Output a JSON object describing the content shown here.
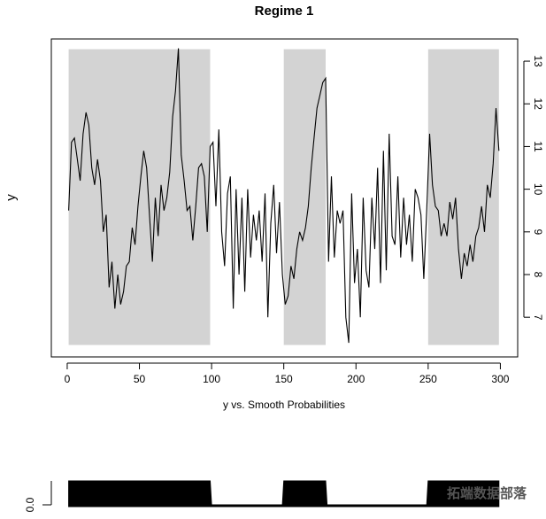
{
  "chart_data": [
    {
      "type": "line",
      "title": "Regime 1",
      "x_label": "y vs. Smooth Probabilities",
      "y_label": "y",
      "color": "#000000",
      "shade_color": "#d3d3d3",
      "x": [
        1,
        3,
        5,
        7,
        9,
        11,
        13,
        15,
        17,
        19,
        21,
        23,
        25,
        27,
        29,
        31,
        33,
        35,
        37,
        39,
        41,
        43,
        45,
        47,
        49,
        51,
        53,
        55,
        57,
        59,
        61,
        63,
        65,
        67,
        69,
        71,
        73,
        75,
        77,
        79,
        81,
        83,
        85,
        87,
        89,
        91,
        93,
        95,
        97,
        99,
        101,
        103,
        105,
        107,
        109,
        111,
        113,
        115,
        117,
        119,
        121,
        123,
        125,
        127,
        129,
        131,
        133,
        135,
        137,
        139,
        141,
        143,
        145,
        147,
        149,
        151,
        153,
        155,
        157,
        159,
        161,
        163,
        165,
        167,
        169,
        171,
        173,
        175,
        177,
        179,
        181,
        183,
        185,
        187,
        189,
        191,
        193,
        195,
        197,
        199,
        201,
        203,
        205,
        207,
        209,
        211,
        213,
        215,
        217,
        219,
        221,
        223,
        225,
        227,
        229,
        231,
        233,
        235,
        237,
        239,
        241,
        243,
        245,
        247,
        249,
        251,
        253,
        255,
        257,
        259,
        261,
        263,
        265,
        267,
        269,
        271,
        273,
        275,
        277,
        279,
        281,
        283,
        285,
        287,
        289,
        291,
        293,
        295,
        297,
        299
      ],
      "values": [
        9.5,
        11.1,
        11.2,
        10.7,
        10.2,
        11.3,
        11.8,
        11.5,
        10.5,
        10.1,
        10.7,
        10.2,
        9.0,
        9.4,
        7.7,
        8.3,
        7.2,
        8.0,
        7.3,
        7.6,
        8.2,
        8.3,
        9.1,
        8.7,
        9.6,
        10.3,
        10.9,
        10.5,
        9.4,
        8.3,
        9.8,
        8.9,
        10.1,
        9.5,
        9.8,
        10.4,
        11.7,
        12.3,
        13.3,
        10.8,
        10.2,
        9.5,
        9.6,
        8.8,
        9.6,
        10.5,
        10.6,
        10.3,
        9.0,
        11.0,
        11.1,
        9.6,
        11.4,
        9.0,
        8.2,
        9.9,
        10.3,
        7.2,
        10.0,
        8.0,
        9.8,
        7.6,
        10.0,
        8.4,
        9.4,
        8.8,
        9.5,
        8.3,
        9.9,
        7.0,
        9.2,
        10.1,
        8.5,
        9.7,
        8.0,
        7.3,
        7.5,
        8.2,
        7.9,
        8.6,
        9.0,
        8.8,
        9.1,
        9.6,
        10.5,
        11.2,
        11.9,
        12.2,
        12.5,
        12.6,
        8.3,
        10.3,
        8.4,
        9.5,
        9.2,
        9.5,
        7.0,
        6.4,
        9.9,
        7.8,
        8.6,
        7.0,
        9.8,
        8.1,
        7.7,
        9.8,
        8.6,
        10.5,
        7.8,
        10.9,
        8.1,
        11.3,
        8.9,
        8.7,
        10.3,
        8.4,
        9.8,
        8.7,
        9.4,
        8.3,
        10.0,
        9.8,
        9.4,
        7.9,
        9.5,
        11.3,
        10.1,
        9.6,
        9.5,
        8.9,
        9.2,
        8.9,
        9.7,
        9.3,
        9.8,
        8.6,
        7.9,
        8.5,
        8.2,
        8.7,
        8.3,
        8.9,
        9.1,
        9.6,
        9.0,
        10.1,
        9.8,
        10.6,
        11.9,
        10.9
      ],
      "shade_x": [
        [
          1,
          99
        ],
        [
          150,
          179
        ],
        [
          250,
          299
        ]
      ],
      "shade_y": [
        6.35,
        13.28
      ],
      "xlim": [
        -11,
        312
      ],
      "xticks": [
        0,
        50,
        100,
        150,
        200,
        250,
        300
      ],
      "ylim": [
        6.07,
        13.52
      ],
      "yticks": [
        7,
        8,
        9,
        10,
        11,
        12,
        13
      ]
    },
    {
      "type": "area",
      "color": "#000000",
      "watermark": "拓端数据部落",
      "x": [
        1,
        99,
        100,
        149,
        150,
        179,
        180,
        249,
        250,
        299
      ],
      "values": [
        1,
        1,
        0,
        0,
        1,
        1,
        0,
        0,
        1,
        1
      ],
      "xlim": [
        -11,
        312
      ],
      "ylim": [
        0,
        1
      ],
      "yticks": [
        {
          "value": 0,
          "label": "0.0"
        }
      ]
    }
  ]
}
